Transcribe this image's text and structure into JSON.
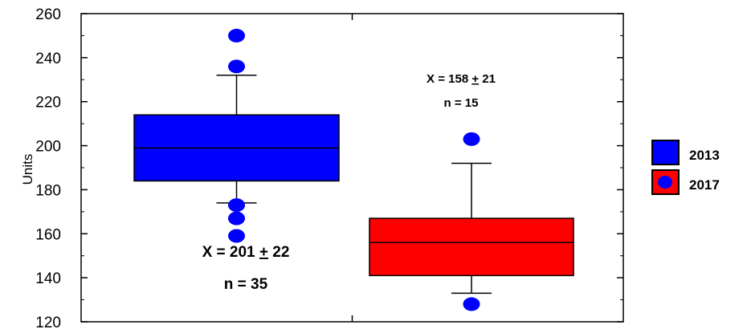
{
  "chart_data": {
    "type": "box",
    "xlabel": "",
    "ylabel": "Units",
    "ylim": [
      120,
      260
    ],
    "yticks": [
      120,
      140,
      160,
      180,
      200,
      220,
      240,
      260
    ],
    "grid": false,
    "legend_position": "right",
    "series": [
      {
        "name": "2013",
        "color": "#0000ff",
        "whisker_low": 174,
        "q1": 184,
        "median": 199,
        "q3": 214,
        "whisker_high": 232,
        "outliers": [
          250,
          236,
          173,
          167,
          159
        ],
        "annotation": {
          "stat": "X = 201 ",
          "pm": "+",
          "stat_tail": " 22",
          "n": "n = 35"
        }
      },
      {
        "name": "2017",
        "color": "#ff0000",
        "whisker_low": 133,
        "q1": 141,
        "median": 156,
        "q3": 167,
        "whisker_high": 192,
        "outliers": [
          203,
          128
        ],
        "annotation": {
          "stat": "X = 158 ",
          "pm": "+",
          "stat_tail": " 21",
          "n": "n = 15"
        }
      }
    ],
    "outlier_color": "#0000ff"
  }
}
